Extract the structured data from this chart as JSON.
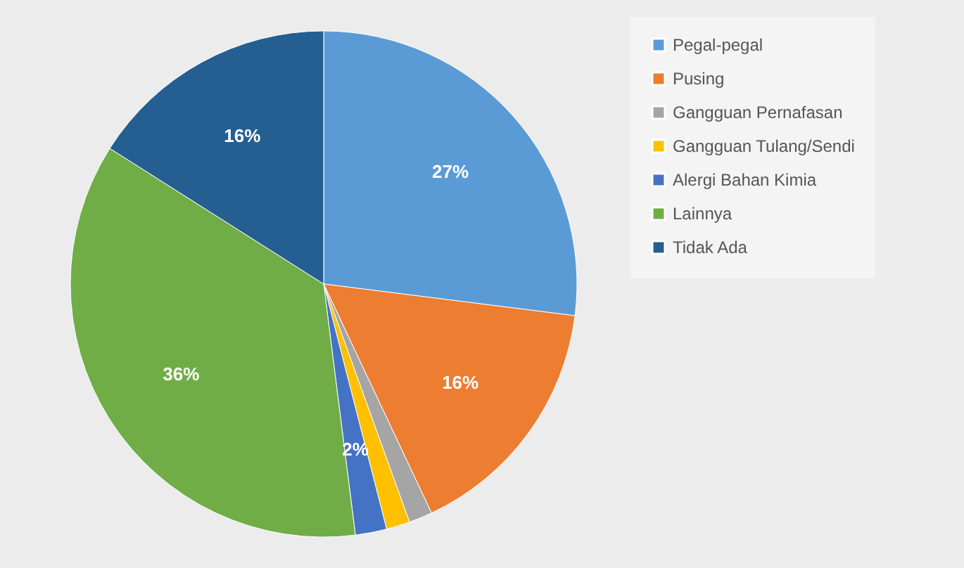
{
  "chart_data": {
    "type": "pie",
    "categories": [
      "Pegal-pegal",
      "Pusing",
      "Gangguan Pernafasan",
      "Gangguan Tulang/Sendi",
      "Alergi Bahan Kimia",
      "Lainnya",
      "Tidak Ada"
    ],
    "values": [
      27,
      16,
      1.5,
      1.5,
      2,
      36,
      16
    ],
    "colors": [
      "#5b9bd5",
      "#ed7d31",
      "#a5a5a5",
      "#ffc000",
      "#4472c4",
      "#70ad47",
      "#255e91"
    ],
    "value_labels": [
      "27%",
      "16%",
      null,
      null,
      "2%",
      "36%",
      "16%"
    ],
    "legend": "right"
  }
}
